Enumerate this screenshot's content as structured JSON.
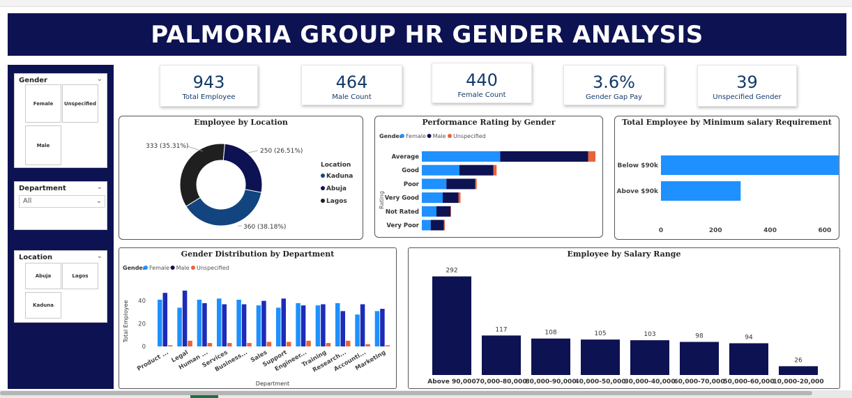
{
  "title": "PALMORIA GROUP HR GENDER ANALYSIS",
  "colors": {
    "navy": "#0d1252",
    "female": "#1e90ff",
    "male": "#0d1252",
    "unspecified": "#e8643c",
    "kpi_text": "#123a6b"
  },
  "slicers": {
    "gender": {
      "title": "Gender",
      "tiles": [
        "Female",
        "Unspecified",
        "Male"
      ]
    },
    "department": {
      "title": "Department",
      "value": "All"
    },
    "location": {
      "title": "Location",
      "tiles": [
        "Abuja",
        "Lagos",
        "Kaduna"
      ]
    }
  },
  "kpis": [
    {
      "value": "943",
      "label": "Total Employee"
    },
    {
      "value": "464",
      "label": "Male Count"
    },
    {
      "value": "440",
      "label": "Female Count"
    },
    {
      "value": "3.6%",
      "label": "Gender Gap Pay"
    },
    {
      "value": "39",
      "label": "Unspecified Gender"
    }
  ],
  "chart_data": [
    {
      "id": "employee-by-location",
      "type": "pie",
      "title": "Employee by Location",
      "legend_title": "Location",
      "legend_position": "right",
      "categories": [
        "Kaduna",
        "Abuja",
        "Lagos"
      ],
      "values": [
        360,
        250,
        333
      ],
      "data_labels": [
        "360 (38.18%)",
        "250 (26.51%)",
        "333 (35.31%)"
      ],
      "colors": [
        "#12457f",
        "#0d1252",
        "#1f1f1f"
      ]
    },
    {
      "id": "performance-rating-by-gender",
      "type": "bar",
      "orientation": "horizontal",
      "stacked": true,
      "title": "Performance Rating by Gender",
      "legend_title": "Gender",
      "ylabel": "Rating",
      "categories": [
        "Average",
        "Good",
        "Poor",
        "Very Good",
        "Not Rated",
        "Very Poor"
      ],
      "series": [
        {
          "name": "Female",
          "values": [
            150,
            72,
            47,
            40,
            28,
            17
          ]
        },
        {
          "name": "Male",
          "values": [
            168,
            65,
            55,
            30,
            27,
            25
          ]
        },
        {
          "name": "Unspecified",
          "values": [
            14,
            6,
            3,
            4,
            1,
            2
          ]
        }
      ],
      "xlim": [
        0,
        340
      ]
    },
    {
      "id": "employee-by-min-salary",
      "type": "bar",
      "orientation": "horizontal",
      "title": "Total Employee by Minimum salary Requirement",
      "categories": [
        "Below $90k",
        "Above $90k"
      ],
      "values": [
        651,
        292
      ],
      "xticks": [
        "0",
        "200",
        "400",
        "600"
      ],
      "xlim": [
        0,
        700
      ]
    },
    {
      "id": "gender-distribution-by-department",
      "type": "bar",
      "title": "Gender Distribution by Department",
      "legend_title": "Gender",
      "xlabel": "Department",
      "ylabel": "Total Employee",
      "categories": [
        "Product ...",
        "Legal",
        "Human ...",
        "Services",
        "Business...",
        "Sales",
        "Support",
        "Engineer...",
        "Training",
        "Research...",
        "Accounti...",
        "Marketing"
      ],
      "series": [
        {
          "name": "Female",
          "values": [
            41,
            34,
            41,
            42,
            41,
            36,
            34,
            38,
            36,
            38,
            28,
            31
          ]
        },
        {
          "name": "Male",
          "values": [
            47,
            49,
            38,
            37,
            37,
            40,
            42,
            36,
            37,
            31,
            37,
            33
          ]
        },
        {
          "name": "Unspecified",
          "values": [
            1,
            5,
            3,
            3,
            3,
            4,
            4,
            5,
            3,
            5,
            2,
            1
          ]
        }
      ],
      "yticks": [
        "0",
        "20",
        "40"
      ],
      "ylim": [
        0,
        52
      ]
    },
    {
      "id": "employee-by-salary-range",
      "type": "bar",
      "title": "Employee by Salary Range",
      "categories": [
        "Above 90,000",
        "70,000-80,000",
        "80,000-90,000",
        "40,000-50,000",
        "30,000-40,000",
        "60,000-70,000",
        "50,000-60,000",
        "10,000-20,000"
      ],
      "values": [
        292,
        117,
        108,
        105,
        103,
        98,
        94,
        26
      ],
      "ylim": [
        0,
        320
      ]
    }
  ]
}
